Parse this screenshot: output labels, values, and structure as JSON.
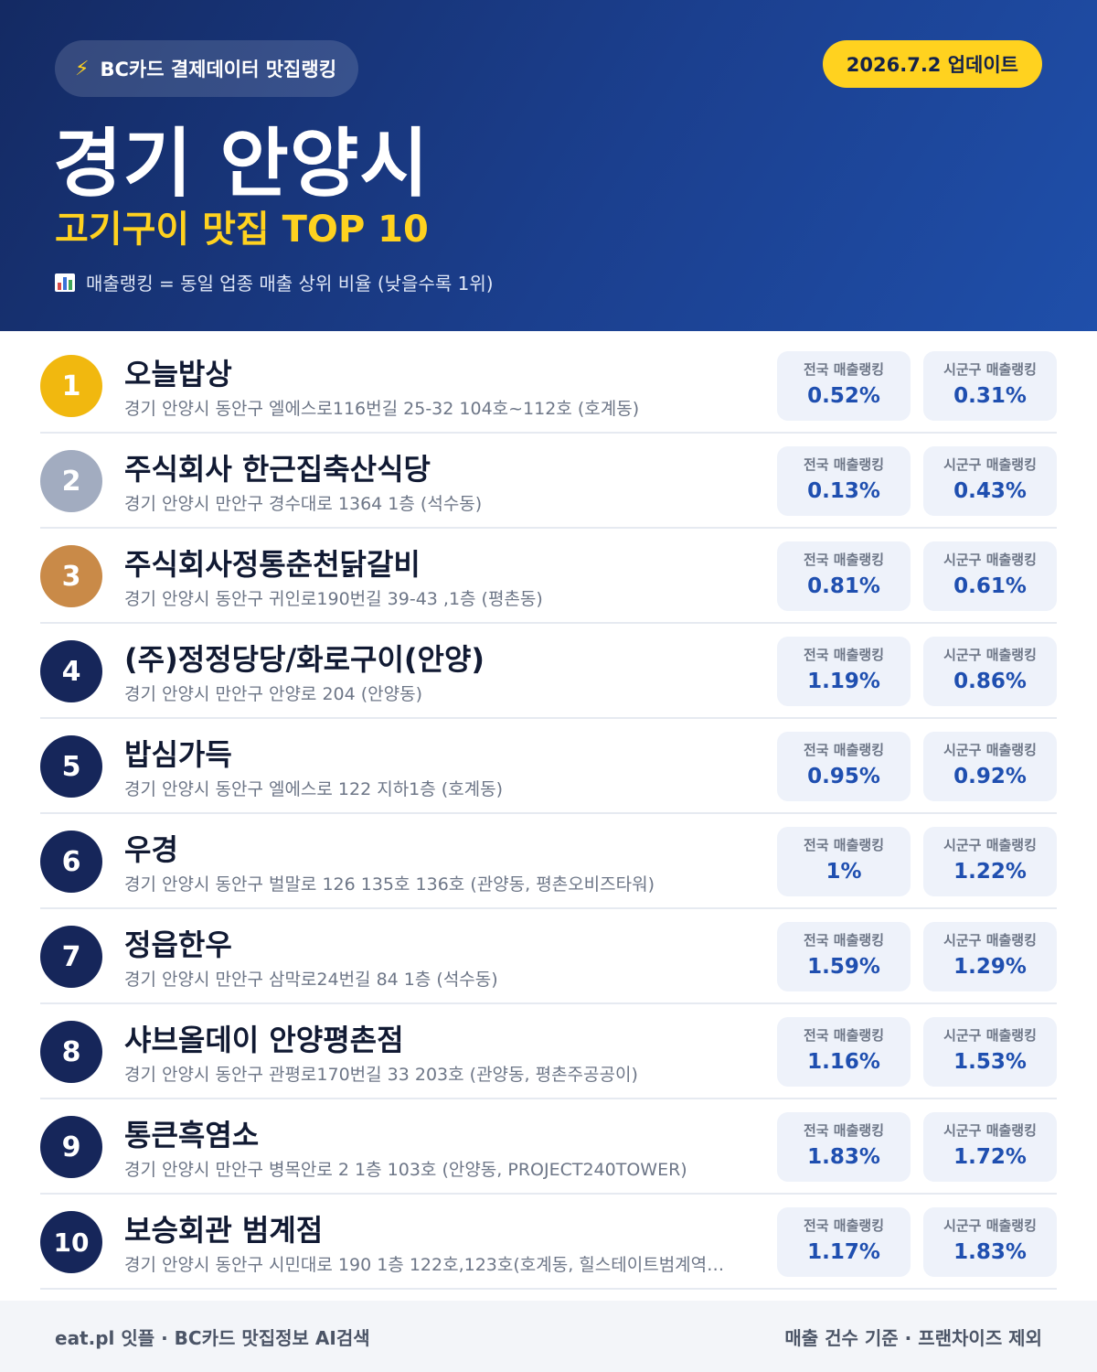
{
  "header": {
    "source_label": "BC카드 결제데이터 맛집랭킹",
    "update_badge": "2026.7.2 업데이트",
    "city": "경기 안양시",
    "category": "고기구이 맛집 TOP 10",
    "legend": "매출랭킹 = 동일 업종 매출 상위 비율 (낮을수록 1위)",
    "colors": {
      "accent": "#ffd21f",
      "header_bg": "#1b3f8e",
      "value": "#1f4fb0"
    }
  },
  "stat_labels": {
    "national": "전국 매출랭킹",
    "local": "시군구 매출랭킹"
  },
  "restaurants": [
    {
      "rank": "1",
      "name": "오늘밥상",
      "address": "경기 안양시 동안구 엘에스로116번길 25-32 104호~112호 (호계동)",
      "national": "0.52%",
      "local": "0.31%"
    },
    {
      "rank": "2",
      "name": "주식회사 한근집축산식당",
      "address": "경기 안양시 만안구 경수대로 1364 1층 (석수동)",
      "national": "0.13%",
      "local": "0.43%"
    },
    {
      "rank": "3",
      "name": "주식회사정통춘천닭갈비",
      "address": "경기 안양시 동안구 귀인로190번길 39-43 ,1층 (평촌동)",
      "national": "0.81%",
      "local": "0.61%"
    },
    {
      "rank": "4",
      "name": "(주)정정당당/화로구이(안양)",
      "address": "경기 안양시 만안구 안양로 204 (안양동)",
      "national": "1.19%",
      "local": "0.86%"
    },
    {
      "rank": "5",
      "name": "밥심가득",
      "address": "경기 안양시 동안구 엘에스로 122 지하1층 (호계동)",
      "national": "0.95%",
      "local": "0.92%"
    },
    {
      "rank": "6",
      "name": "우경",
      "address": "경기 안양시 동안구 벌말로 126 135호 136호 (관양동, 평촌오비즈타워)",
      "national": "1%",
      "local": "1.22%"
    },
    {
      "rank": "7",
      "name": "정읍한우",
      "address": "경기 안양시 만안구 삼막로24번길 84 1층 (석수동)",
      "national": "1.59%",
      "local": "1.29%"
    },
    {
      "rank": "8",
      "name": "샤브올데이 안양평촌점",
      "address": "경기 안양시 동안구 관평로170번길 33 203호 (관양동, 평촌주공공이)",
      "national": "1.16%",
      "local": "1.53%"
    },
    {
      "rank": "9",
      "name": "통큰흑염소",
      "address": "경기 안양시 만안구 병목안로 2 1층 103호 (안양동, PROJECT240TOWER)",
      "national": "1.83%",
      "local": "1.72%"
    },
    {
      "rank": "10",
      "name": "보승회관 범계점",
      "address": "경기 안양시 동안구 시민대로 190 1층 122호,123호(호계동, 힐스테이트범계역…",
      "national": "1.17%",
      "local": "1.83%"
    }
  ],
  "footer": {
    "left": "eat.pl 잇플 · BC카드 맛집정보 AI검색",
    "right": "매출 건수 기준 · 프랜차이즈 제외"
  }
}
